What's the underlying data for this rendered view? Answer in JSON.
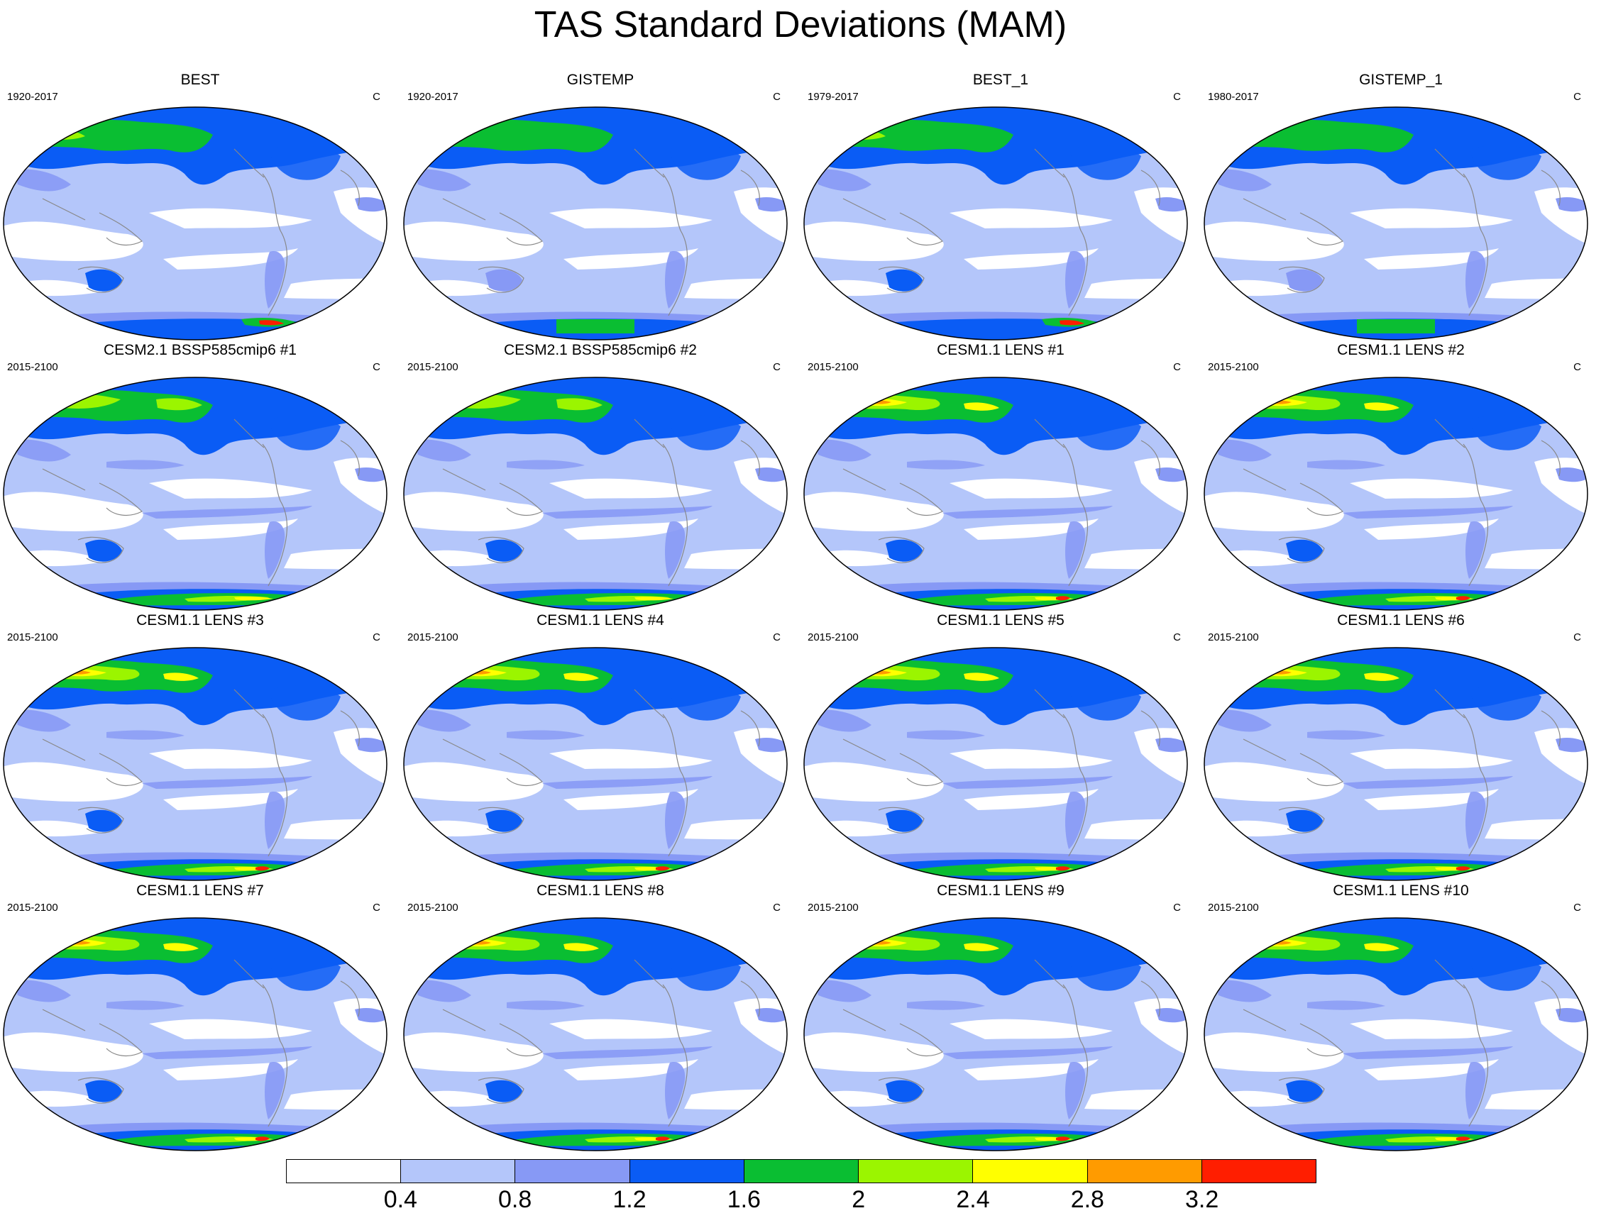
{
  "title": "TAS Standard Deviations (MAM)",
  "panels": [
    {
      "title": "BEST",
      "period": "1920-2017",
      "units": "C",
      "style": "obs"
    },
    {
      "title": "GISTEMP",
      "period": "1920-2017",
      "units": "C",
      "style": "gis"
    },
    {
      "title": "BEST_1",
      "period": "1979-2017",
      "units": "C",
      "style": "obs"
    },
    {
      "title": "GISTEMP_1",
      "period": "1980-2017",
      "units": "C",
      "style": "gis"
    },
    {
      "title": "CESM2.1 BSSP585cmip6 #1",
      "period": "2015-2100",
      "units": "C",
      "style": "cesm2"
    },
    {
      "title": "CESM2.1 BSSP585cmip6 #2",
      "period": "2015-2100",
      "units": "C",
      "style": "cesm2"
    },
    {
      "title": "CESM1.1 LENS #1",
      "period": "2015-2100",
      "units": "C",
      "style": "lens"
    },
    {
      "title": "CESM1.1 LENS #2",
      "period": "2015-2100",
      "units": "C",
      "style": "lens"
    },
    {
      "title": "CESM1.1 LENS #3",
      "period": "2015-2100",
      "units": "C",
      "style": "lens"
    },
    {
      "title": "CESM1.1 LENS #4",
      "period": "2015-2100",
      "units": "C",
      "style": "lens"
    },
    {
      "title": "CESM1.1 LENS #5",
      "period": "2015-2100",
      "units": "C",
      "style": "lens"
    },
    {
      "title": "CESM1.1 LENS #6",
      "period": "2015-2100",
      "units": "C",
      "style": "lens"
    },
    {
      "title": "CESM1.1 LENS #7",
      "period": "2015-2100",
      "units": "C",
      "style": "lens"
    },
    {
      "title": "CESM1.1 LENS #8",
      "period": "2015-2100",
      "units": "C",
      "style": "lens"
    },
    {
      "title": "CESM1.1 LENS #9",
      "period": "2015-2100",
      "units": "C",
      "style": "lens"
    },
    {
      "title": "CESM1.1 LENS #10",
      "period": "2015-2100",
      "units": "C",
      "style": "lens"
    }
  ],
  "colorbar": {
    "colors": [
      "#ffffff",
      "#b4c6fa",
      "#8799f5",
      "#0a5cf5",
      "#0abe32",
      "#9bf500",
      "#ffff00",
      "#ff9b00",
      "#ff1e00"
    ],
    "labels": [
      "0.4",
      "0.8",
      "1.2",
      "1.6",
      "2",
      "2.4",
      "2.8",
      "3.2"
    ]
  }
}
